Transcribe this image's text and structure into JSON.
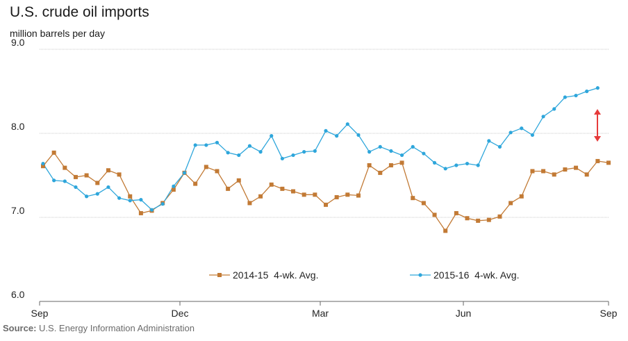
{
  "chart_data": {
    "type": "line",
    "title": "U.S. crude oil imports",
    "subtitle": "million barrels per day",
    "ylim": [
      6.0,
      9.0
    ],
    "yticks": [
      "6.0",
      "7.0",
      "8.0",
      "9.0"
    ],
    "xtick_labels": [
      "Sep",
      "Dec",
      "Mar",
      "Jun",
      "Sep"
    ],
    "grid": true,
    "legend_position": "bottom-center",
    "annotation": "red double-headed arrow between series at latest week",
    "series": [
      {
        "name": "2014-15  4-wk. Avg.",
        "color": "#c27a35",
        "marker": "square",
        "values": [
          7.61,
          7.77,
          7.59,
          7.48,
          7.5,
          7.41,
          7.56,
          7.51,
          7.25,
          7.05,
          7.08,
          7.17,
          7.33,
          7.53,
          7.4,
          7.6,
          7.55,
          7.34,
          7.44,
          7.17,
          7.25,
          7.39,
          7.34,
          7.31,
          7.27,
          7.27,
          7.15,
          7.24,
          7.27,
          7.26,
          7.62,
          7.53,
          7.62,
          7.65,
          7.23,
          7.17,
          7.03,
          6.84,
          7.05,
          6.99,
          6.96,
          6.97,
          7.01,
          7.17,
          7.25,
          7.55,
          7.55,
          7.51,
          7.57,
          7.59,
          7.51,
          7.67,
          7.65
        ]
      },
      {
        "name": "2015-16  4-wk. Avg.",
        "color": "#2ea6db",
        "marker": "circle",
        "values": [
          7.64,
          7.44,
          7.43,
          7.36,
          7.25,
          7.28,
          7.36,
          7.23,
          7.2,
          7.21,
          7.09,
          7.16,
          7.37,
          7.53,
          7.86,
          7.86,
          7.89,
          7.77,
          7.74,
          7.85,
          7.78,
          7.97,
          7.7,
          7.74,
          7.78,
          7.79,
          8.03,
          7.97,
          8.11,
          7.98,
          7.78,
          7.84,
          7.79,
          7.74,
          7.84,
          7.76,
          7.65,
          7.58,
          7.62,
          7.64,
          7.62,
          7.91,
          7.84,
          8.01,
          8.06,
          7.98,
          8.2,
          8.29,
          8.43,
          8.45,
          8.5,
          8.54
        ]
      }
    ]
  },
  "source": {
    "label": "Source:",
    "text": " U.S. Energy Information Administration"
  }
}
